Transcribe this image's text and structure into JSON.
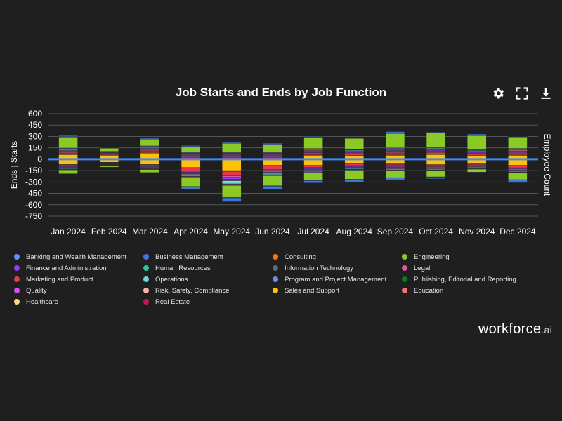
{
  "toolbar": {
    "settings_icon": "gear-icon",
    "fullscreen_icon": "expand-icon",
    "download_icon": "download-icon"
  },
  "brand": {
    "name": "workforce",
    "suffix": ".ai"
  },
  "chart_data": {
    "type": "bar",
    "stacked": true,
    "title": "Job Starts and Ends by Job Function",
    "ylabel": "Ends | Starts",
    "y2label": "Employee Count",
    "ylim": [
      -750,
      600
    ],
    "yticks": [
      600,
      450,
      300,
      150,
      0,
      -150,
      -300,
      -450,
      -600,
      -750
    ],
    "categories": [
      "Jan 2024",
      "Feb 2024",
      "Mar 2024",
      "Apr 2024",
      "May 2024",
      "Jun 2024",
      "Jul 2024",
      "Aug 2024",
      "Sep 2024",
      "Oct 2024",
      "Nov 2024",
      "Dec 2024"
    ],
    "employee_count_line": [
      0,
      0,
      0,
      0,
      0,
      0,
      0,
      0,
      0,
      0,
      0,
      0
    ],
    "colors": {
      "Banking and Wealth Management": "#5b8ff9",
      "Business Management": "#3d76dd",
      "Consulting": "#f6731c",
      "Engineering": "#8ac926",
      "Finance and Administration": "#8a3ffc",
      "Human Resources": "#2ec4a0",
      "Information Technology": "#5f6b7a",
      "Legal": "#e0559b",
      "Marketing and Product": "#e8384f",
      "Operations": "#6fd3d8",
      "Program and Project Management": "#7b87f0",
      "Publishing, Editorial and Reporting": "#0a7d1b",
      "Quality": "#d94ce8",
      "Risk, Safety, Compliance": "#f6b0a6",
      "Sales and Support": "#ffc008",
      "Education": "#f07174",
      "Healthcare": "#ffd97a",
      "Real Estate": "#c2185b"
    },
    "series": [
      {
        "name": "Sales and Support",
        "starts": [
          60,
          40,
          80,
          0,
          0,
          0,
          50,
          40,
          50,
          60,
          40,
          50
        ],
        "ends": [
          -70,
          -40,
          -70,
          -110,
          -150,
          -80,
          -80,
          -50,
          -60,
          -70,
          -50,
          -80
        ]
      },
      {
        "name": "Consulting",
        "starts": [
          5,
          5,
          8,
          8,
          8,
          8,
          8,
          8,
          10,
          10,
          10,
          10
        ],
        "ends": [
          -5,
          -5,
          -5,
          -8,
          -10,
          -8,
          -8,
          -8,
          -8,
          -8,
          -8,
          -8
        ]
      },
      {
        "name": "Marketing and Product",
        "starts": [
          15,
          12,
          20,
          15,
          15,
          15,
          15,
          20,
          20,
          20,
          15,
          15
        ],
        "ends": [
          -10,
          -8,
          -10,
          -40,
          -60,
          -50,
          -20,
          -20,
          -15,
          -15,
          -15,
          -25
        ]
      },
      {
        "name": "Legal",
        "starts": [
          10,
          8,
          10,
          10,
          10,
          10,
          10,
          10,
          10,
          10,
          10,
          10
        ],
        "ends": [
          -8,
          -5,
          -8,
          -10,
          -15,
          -10,
          -8,
          -10,
          -8,
          -8,
          -8,
          -8
        ]
      },
      {
        "name": "Quality",
        "starts": [
          8,
          5,
          8,
          8,
          8,
          8,
          8,
          8,
          10,
          8,
          8,
          8
        ],
        "ends": [
          -5,
          -5,
          -5,
          -8,
          -10,
          -8,
          -8,
          -8,
          -8,
          -8,
          -8,
          -8
        ]
      },
      {
        "name": "Finance and Administration",
        "starts": [
          10,
          8,
          10,
          10,
          10,
          10,
          10,
          10,
          10,
          10,
          10,
          10
        ],
        "ends": [
          -10,
          -5,
          -8,
          -15,
          -20,
          -15,
          -15,
          -10,
          -8,
          -8,
          -8,
          -15
        ]
      },
      {
        "name": "Information Technology",
        "starts": [
          10,
          8,
          10,
          10,
          10,
          10,
          10,
          10,
          10,
          10,
          10,
          10
        ],
        "ends": [
          -10,
          -5,
          -10,
          -15,
          -20,
          -15,
          -10,
          -10,
          -15,
          -10,
          -8,
          -10
        ]
      },
      {
        "name": "Risk, Safety, Compliance",
        "starts": [
          8,
          5,
          8,
          8,
          8,
          8,
          8,
          8,
          8,
          8,
          8,
          8
        ],
        "ends": [
          -5,
          -5,
          -5,
          -8,
          -15,
          -10,
          -8,
          -8,
          -8,
          -8,
          -8,
          -8
        ]
      },
      {
        "name": "Operations",
        "starts": [
          8,
          5,
          8,
          8,
          8,
          8,
          8,
          8,
          8,
          8,
          8,
          8
        ],
        "ends": [
          -8,
          -5,
          -5,
          -10,
          -25,
          -10,
          -8,
          -8,
          -10,
          -8,
          -8,
          -8
        ]
      },
      {
        "name": "Education",
        "starts": [
          5,
          3,
          5,
          5,
          5,
          5,
          5,
          5,
          5,
          5,
          5,
          5
        ],
        "ends": [
          -5,
          -3,
          -5,
          -5,
          -5,
          -5,
          -5,
          -5,
          -5,
          -5,
          -5,
          -5
        ]
      },
      {
        "name": "Program and Project Management",
        "starts": [
          8,
          5,
          8,
          8,
          8,
          8,
          8,
          8,
          8,
          8,
          8,
          8
        ],
        "ends": [
          -5,
          -3,
          -5,
          -10,
          -15,
          -10,
          -8,
          -8,
          -8,
          -5,
          -5,
          -5
        ]
      },
      {
        "name": "Engineering",
        "starts": [
          140,
          40,
          90,
          70,
          120,
          100,
          140,
          140,
          190,
          190,
          180,
          150
        ],
        "ends": [
          -40,
          -15,
          -40,
          -120,
          -160,
          -130,
          -100,
          -120,
          -90,
          -80,
          -40,
          -90
        ]
      },
      {
        "name": "Banking and Wealth Management",
        "starts": [
          10,
          5,
          10,
          10,
          10,
          10,
          10,
          8,
          10,
          8,
          10,
          5
        ],
        "ends": [
          -5,
          -3,
          -5,
          -5,
          -5,
          -5,
          -5,
          -5,
          -5,
          -5,
          -5,
          -5
        ]
      },
      {
        "name": "Business Management",
        "starts": [
          15,
          5,
          10,
          10,
          10,
          10,
          10,
          5,
          15,
          5,
          10,
          5
        ],
        "ends": [
          -10,
          -3,
          -5,
          -30,
          -50,
          -40,
          -30,
          -30,
          -30,
          -20,
          -10,
          -35
        ]
      }
    ],
    "legend": [
      "Banking and Wealth Management",
      "Business Management",
      "Consulting",
      "Engineering",
      "Finance and Administration",
      "Human Resources",
      "Information Technology",
      "Legal",
      "Marketing and Product",
      "Operations",
      "Program and Project Management",
      "Publishing, Editorial and Reporting",
      "Quality",
      "Risk, Safety, Compliance",
      "Sales and Support",
      "Education",
      "Healthcare",
      "Real Estate"
    ]
  }
}
